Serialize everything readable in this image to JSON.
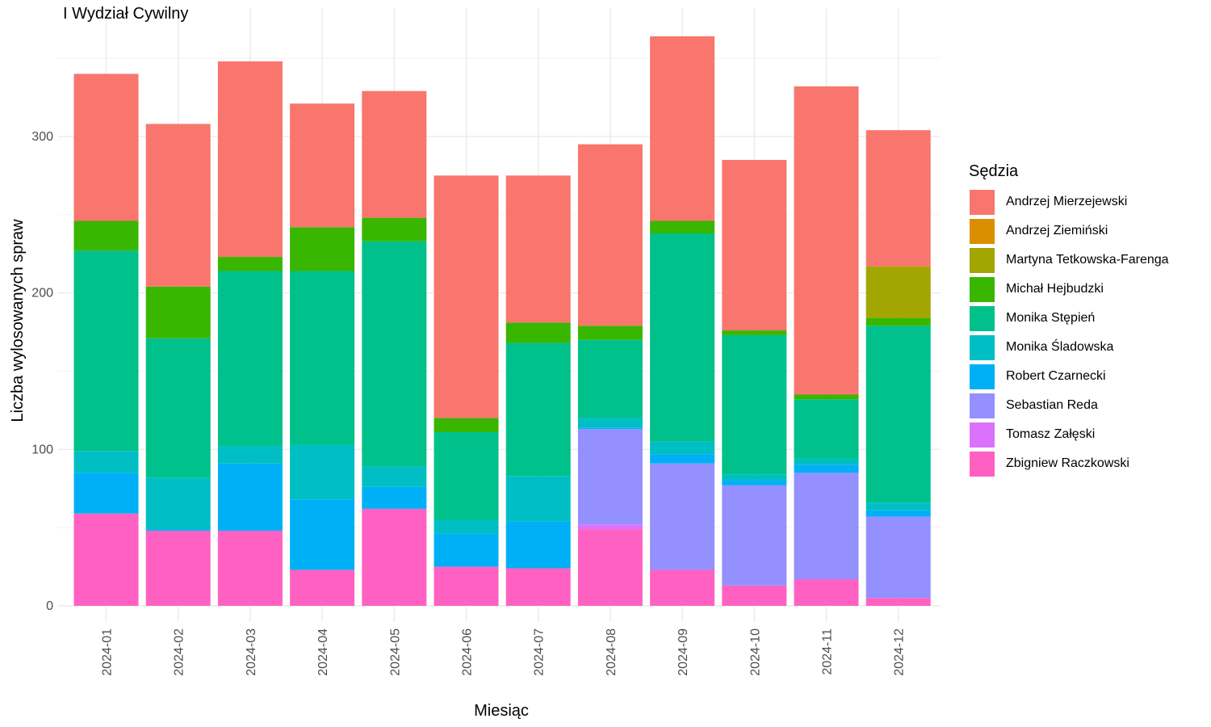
{
  "chart_data": {
    "type": "bar",
    "stacked": true,
    "title": "I Wydział Cywilny",
    "xlabel": "Miesiąc",
    "ylabel": "Liczba wylosowanych spraw",
    "ylim": [
      0,
      380
    ],
    "yticks": [
      0,
      100,
      200,
      300
    ],
    "grid": true,
    "legend_title": "Sędzia",
    "legend_position": "right",
    "categories": [
      "2024-01",
      "2024-02",
      "2024-03",
      "2024-04",
      "2024-05",
      "2024-06",
      "2024-07",
      "2024-08",
      "2024-09",
      "2024-10",
      "2024-11",
      "2024-12"
    ],
    "series": [
      {
        "name": "Zbigniew Raczkowski",
        "color": "#FF61C3",
        "values": [
          59,
          48,
          48,
          23,
          62,
          25,
          24,
          49,
          23,
          13,
          17,
          5
        ]
      },
      {
        "name": "Tomasz Załęski",
        "color": "#DB72FB",
        "values": [
          0,
          0,
          0,
          0,
          0,
          0,
          0,
          3,
          0,
          0,
          0,
          0
        ]
      },
      {
        "name": "Sebastian Reda",
        "color": "#9590FF",
        "values": [
          0,
          0,
          0,
          0,
          0,
          0,
          0,
          61,
          68,
          64,
          68,
          52
        ]
      },
      {
        "name": "Robert Czarnecki",
        "color": "#00B0F6",
        "values": [
          26,
          1,
          43,
          45,
          14,
          21,
          30,
          1,
          6,
          3,
          5,
          4
        ]
      },
      {
        "name": "Monika Śladowska",
        "color": "#00BFC4",
        "values": [
          14,
          33,
          11,
          35,
          13,
          9,
          29,
          6,
          8,
          4,
          4,
          5
        ]
      },
      {
        "name": "Monika Stępień",
        "color": "#00C08B",
        "values": [
          128,
          89,
          112,
          111,
          144,
          56,
          85,
          50,
          133,
          89,
          38,
          113
        ]
      },
      {
        "name": "Michał Hejbudzki",
        "color": "#39B600",
        "values": [
          19,
          33,
          9,
          28,
          15,
          9,
          13,
          9,
          8,
          3,
          3,
          5
        ]
      },
      {
        "name": "Martyna Tetkowska-Farenga",
        "color": "#A3A500",
        "values": [
          0,
          0,
          0,
          0,
          0,
          0,
          0,
          0,
          0,
          0,
          0,
          33
        ]
      },
      {
        "name": "Andrzej Ziemiński",
        "color": "#D89000",
        "values": [
          0,
          0,
          0,
          0,
          0,
          0,
          0,
          0,
          0,
          0,
          0,
          0
        ]
      },
      {
        "name": "Andrzej Mierzejewski",
        "color": "#F8766D",
        "values": [
          94,
          104,
          125,
          79,
          81,
          155,
          94,
          116,
          118,
          109,
          197,
          87
        ]
      }
    ],
    "legend_order": [
      "Andrzej Mierzejewski",
      "Andrzej Ziemiński",
      "Martyna Tetkowska-Farenga",
      "Michał Hejbudzki",
      "Monika Stępień",
      "Monika Śladowska",
      "Robert Czarnecki",
      "Sebastian Reda",
      "Tomasz Załęski",
      "Zbigniew Raczkowski"
    ]
  }
}
